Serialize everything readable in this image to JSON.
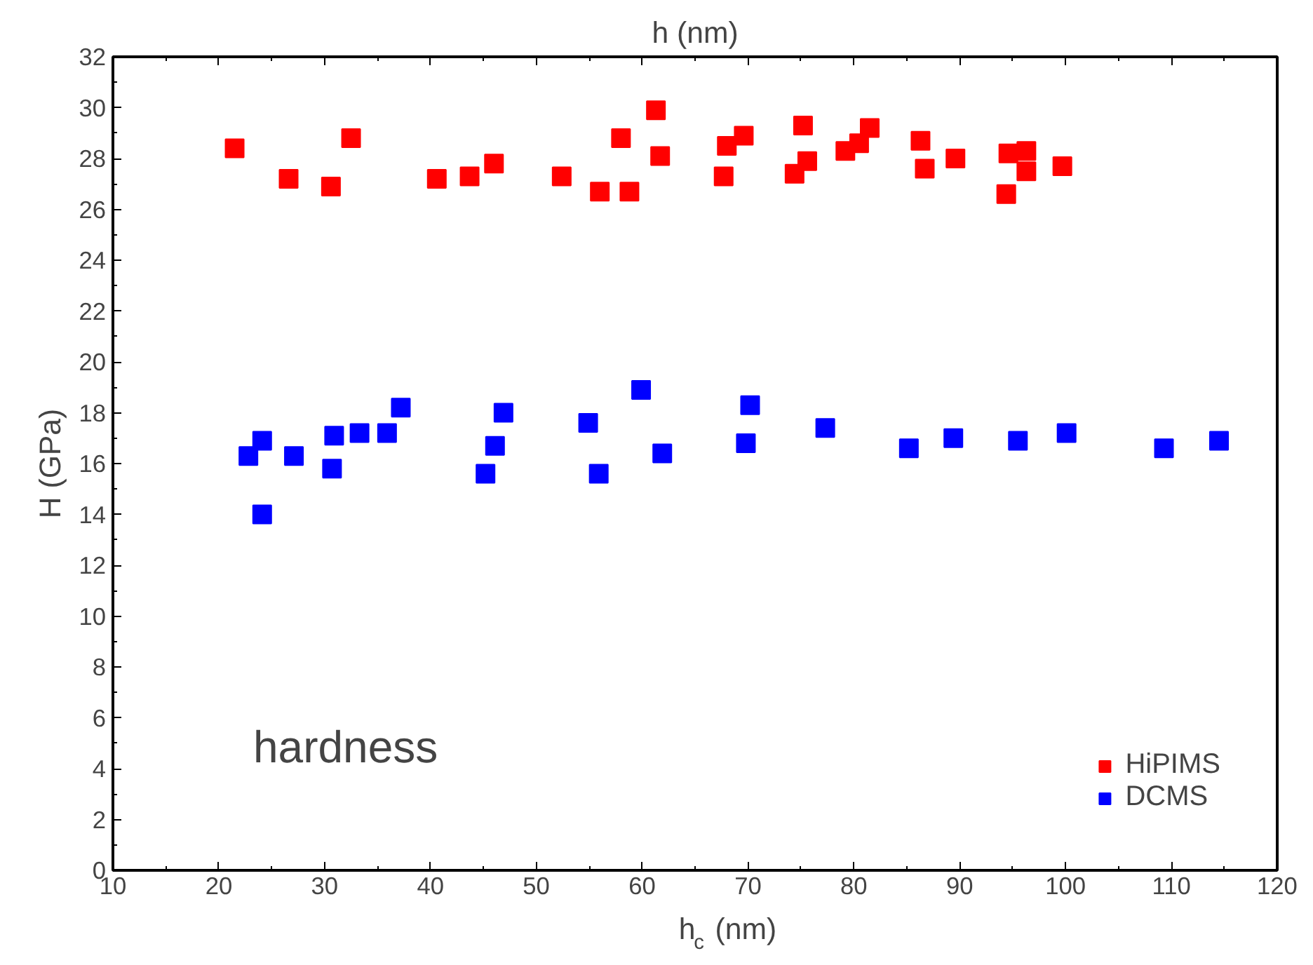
{
  "chart_data": {
    "type": "scatter",
    "xlabel": "h$_{c}$ (nm)",
    "ylabel": "H (GPa)",
    "x2label": "h (nm)",
    "xlim": [
      10,
      120
    ],
    "xticks": [
      10,
      20,
      30,
      40,
      50,
      60,
      70,
      80,
      90,
      100,
      110,
      120
    ],
    "ylim": [
      0,
      32
    ],
    "yticks": [
      0,
      2,
      4,
      6,
      8,
      10,
      12,
      14,
      16,
      18,
      20,
      22,
      24,
      26,
      28,
      30,
      32
    ],
    "grid": false,
    "legend": "bottom right",
    "marker": "square",
    "annotations": [
      "hardness"
    ],
    "series": [
      {
        "name": "HiPIMS",
        "color": "#ff0000",
        "x": [
          21.5,
          26.6,
          30.6,
          32.5,
          40.6,
          43.7,
          46.0,
          52.4,
          56.0,
          58.0,
          58.8,
          61.3,
          61.7,
          67.7,
          68.0,
          69.6,
          74.4,
          75.2,
          75.6,
          79.2,
          80.5,
          81.5,
          86.3,
          86.7,
          89.6,
          94.6,
          94.4,
          96.3,
          96.3,
          99.7
        ],
        "values": [
          28.4,
          27.2,
          26.9,
          28.8,
          27.2,
          27.3,
          27.8,
          27.3,
          26.7,
          28.8,
          26.7,
          29.9,
          28.1,
          27.3,
          28.5,
          28.9,
          27.4,
          29.3,
          27.9,
          28.3,
          28.6,
          29.2,
          28.7,
          27.6,
          28.0,
          28.2,
          26.6,
          28.3,
          27.5,
          27.7
        ]
      },
      {
        "name": "DCMS",
        "color": "#0000ff",
        "x": [
          22.8,
          24.1,
          24.1,
          27.1,
          30.7,
          30.9,
          33.3,
          35.9,
          37.2,
          45.2,
          46.1,
          46.9,
          54.9,
          55.9,
          59.9,
          61.9,
          69.8,
          70.2,
          77.3,
          85.2,
          89.4,
          95.5,
          100.1,
          109.3,
          114.5
        ],
        "values": [
          16.3,
          16.9,
          14.0,
          16.3,
          15.8,
          17.1,
          17.2,
          17.2,
          18.2,
          15.6,
          16.7,
          18.0,
          17.6,
          15.6,
          18.9,
          16.4,
          16.8,
          18.3,
          17.4,
          16.6,
          17.0,
          16.9,
          17.2,
          16.6,
          16.9
        ]
      }
    ]
  }
}
